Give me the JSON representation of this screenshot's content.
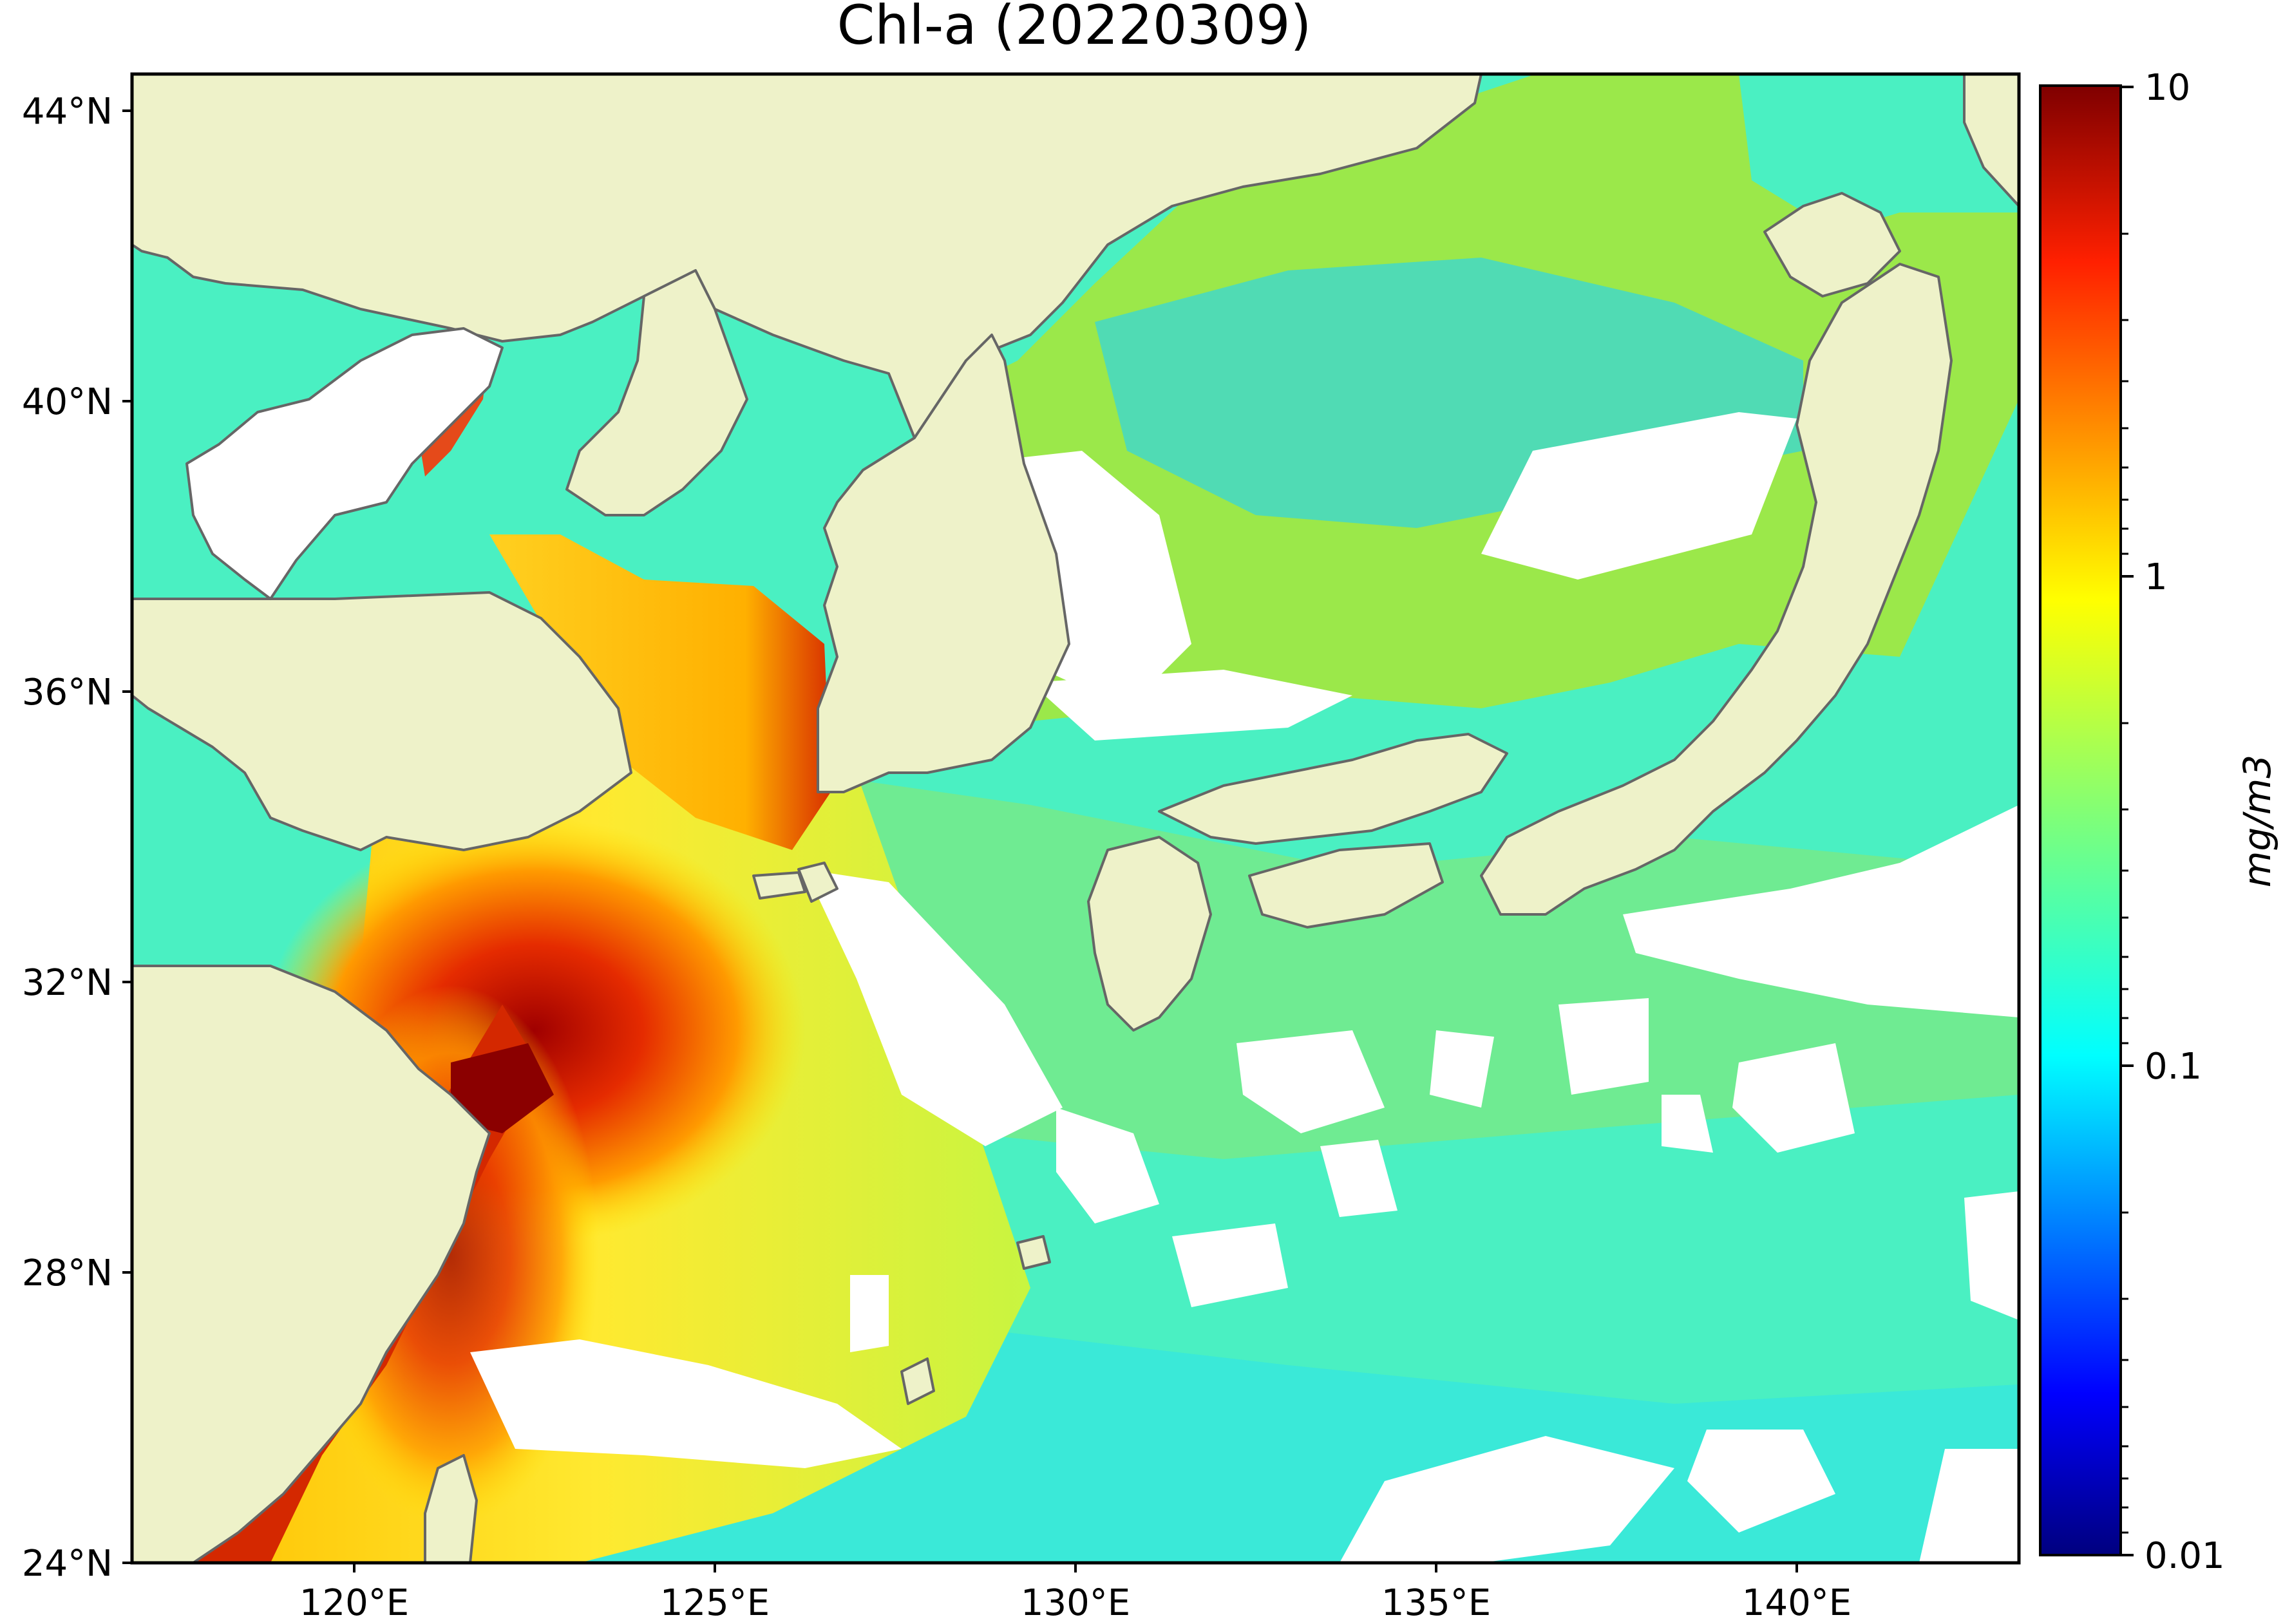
{
  "title": "Chl-a (20220309)",
  "lat_ticks": [
    "44°N",
    "40°N",
    "36°N",
    "32°N",
    "28°N",
    "24°N"
  ],
  "lon_ticks": [
    "120°E",
    "125°E",
    "130°E",
    "135°E",
    "140°E"
  ],
  "colorbar": {
    "label": "mg/m3",
    "ticks": [
      "10",
      "1",
      "0.1",
      "0.01"
    ],
    "scale": "log",
    "range": [
      0.01,
      10
    ],
    "colormap": "jet"
  },
  "map_extent": {
    "lon": [
      117,
      143
    ],
    "lat": [
      24,
      44.5
    ]
  },
  "colors": {
    "land": "#eef2c9",
    "no_data": "#ffffff",
    "coastline": "#666666",
    "high": "#8b0000",
    "mid": "#ffe600",
    "low": "#39f0cc"
  }
}
